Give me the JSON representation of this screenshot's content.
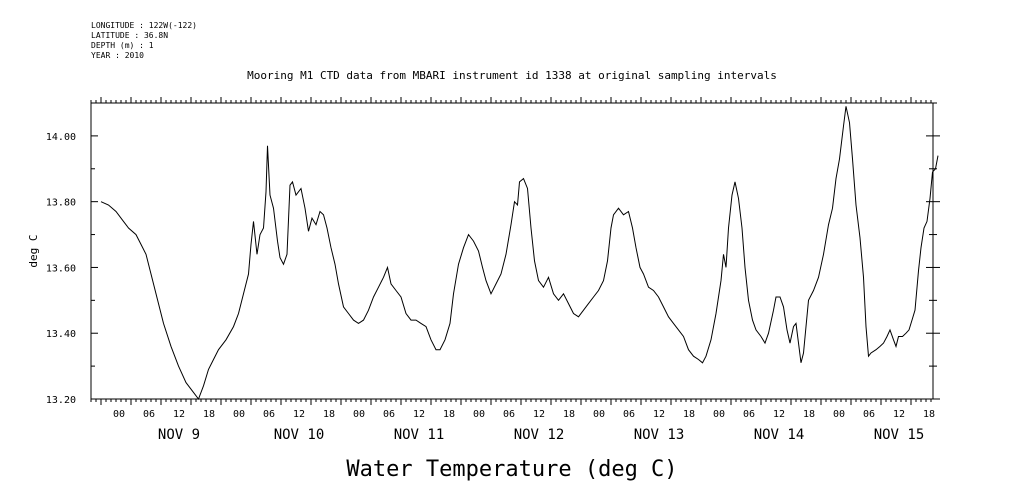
{
  "metadata": {
    "longitude": "LONGITUDE : 122W(-122)",
    "latitude": "LATITUDE : 36.8N",
    "depth": "DEPTH (m) : 1",
    "year": "YEAR : 2010"
  },
  "colors": {
    "line": "#000000",
    "background": "#ffffff"
  },
  "chart_data": {
    "type": "line",
    "title": "Mooring M1 CTD data from MBARI instrument id 1338 at original sampling intervals",
    "xlabel": "Water Temperature (deg C)",
    "ylabel": "deg C",
    "ylim": [
      13.2,
      14.1
    ],
    "yticks": [
      13.2,
      13.4,
      13.6,
      13.8,
      14.0
    ],
    "ytick_labels": [
      "13.20",
      "13.40",
      "13.60",
      "13.80",
      "14.00"
    ],
    "x_unit": "hours from NOV 8 18:00",
    "xlim": [
      0,
      168
    ],
    "hour_ticks": [
      "00",
      "06",
      "12",
      "18",
      "00",
      "06",
      "12",
      "18",
      "00",
      "06",
      "12",
      "18",
      "00",
      "06",
      "12",
      "18",
      "00",
      "06",
      "12",
      "18",
      "00",
      "06",
      "12",
      "18",
      "00",
      "06",
      "12",
      "18"
    ],
    "day_labels": [
      "NOV  9",
      "NOV 10",
      "NOV 11",
      "NOV 12",
      "NOV 13",
      "NOV 14",
      "NOV 15"
    ],
    "grid": false,
    "series": [
      {
        "values": [
          [
            0.0,
            13.8
          ],
          [
            1.5,
            13.79
          ],
          [
            3.0,
            13.77
          ],
          [
            4.5,
            13.74
          ],
          [
            5.5,
            13.72
          ],
          [
            7.0,
            13.7
          ],
          [
            8.0,
            13.67
          ],
          [
            9.0,
            13.64
          ],
          [
            10.0,
            13.58
          ],
          [
            11.0,
            13.52
          ],
          [
            12.5,
            13.43
          ],
          [
            14.0,
            13.36
          ],
          [
            15.5,
            13.3
          ],
          [
            17.0,
            13.25
          ],
          [
            18.5,
            13.22
          ],
          [
            19.5,
            13.2
          ],
          [
            20.5,
            13.24
          ],
          [
            21.5,
            13.29
          ],
          [
            22.5,
            13.32
          ],
          [
            23.5,
            13.35
          ],
          [
            25.0,
            13.38
          ],
          [
            26.5,
            13.42
          ],
          [
            27.5,
            13.46
          ],
          [
            28.5,
            13.52
          ],
          [
            29.5,
            13.58
          ],
          [
            30.0,
            13.67
          ],
          [
            30.5,
            13.74
          ],
          [
            31.2,
            13.64
          ],
          [
            31.8,
            13.7
          ],
          [
            32.5,
            13.72
          ],
          [
            33.0,
            13.83
          ],
          [
            33.3,
            13.97
          ],
          [
            33.8,
            13.82
          ],
          [
            34.5,
            13.78
          ],
          [
            35.3,
            13.68
          ],
          [
            35.8,
            13.63
          ],
          [
            36.5,
            13.61
          ],
          [
            37.2,
            13.64
          ],
          [
            37.8,
            13.85
          ],
          [
            38.3,
            13.86
          ],
          [
            39.0,
            13.82
          ],
          [
            40.0,
            13.84
          ],
          [
            40.8,
            13.78
          ],
          [
            41.5,
            13.71
          ],
          [
            42.2,
            13.75
          ],
          [
            43.0,
            13.73
          ],
          [
            43.8,
            13.77
          ],
          [
            44.5,
            13.76
          ],
          [
            45.2,
            13.72
          ],
          [
            46.0,
            13.66
          ],
          [
            46.8,
            13.61
          ],
          [
            47.5,
            13.55
          ],
          [
            48.5,
            13.48
          ],
          [
            49.5,
            13.46
          ],
          [
            50.5,
            13.44
          ],
          [
            51.5,
            13.43
          ],
          [
            52.5,
            13.44
          ],
          [
            53.5,
            13.47
          ],
          [
            54.5,
            13.51
          ],
          [
            55.5,
            13.54
          ],
          [
            56.5,
            13.57
          ],
          [
            57.3,
            13.6
          ],
          [
            58.0,
            13.55
          ],
          [
            59.0,
            13.53
          ],
          [
            60.0,
            13.51
          ],
          [
            61.0,
            13.46
          ],
          [
            62.0,
            13.44
          ],
          [
            63.0,
            13.44
          ],
          [
            64.0,
            13.43
          ],
          [
            65.0,
            13.42
          ],
          [
            66.0,
            13.38
          ],
          [
            67.0,
            13.35
          ],
          [
            67.8,
            13.35
          ],
          [
            68.8,
            13.38
          ],
          [
            69.8,
            13.43
          ],
          [
            70.5,
            13.52
          ],
          [
            71.5,
            13.61
          ],
          [
            72.5,
            13.66
          ],
          [
            73.5,
            13.7
          ],
          [
            74.5,
            13.68
          ],
          [
            75.5,
            13.65
          ],
          [
            76.3,
            13.6
          ],
          [
            77.0,
            13.56
          ],
          [
            78.0,
            13.52
          ],
          [
            79.0,
            13.55
          ],
          [
            80.0,
            13.58
          ],
          [
            81.0,
            13.64
          ],
          [
            82.0,
            13.73
          ],
          [
            82.7,
            13.8
          ],
          [
            83.3,
            13.79
          ],
          [
            83.7,
            13.86
          ],
          [
            84.5,
            13.87
          ],
          [
            85.3,
            13.84
          ],
          [
            86.0,
            13.72
          ],
          [
            86.7,
            13.62
          ],
          [
            87.5,
            13.56
          ],
          [
            88.5,
            13.54
          ],
          [
            89.5,
            13.57
          ],
          [
            90.5,
            13.52
          ],
          [
            91.5,
            13.5
          ],
          [
            92.5,
            13.52
          ],
          [
            93.5,
            13.49
          ],
          [
            94.5,
            13.46
          ],
          [
            95.5,
            13.45
          ],
          [
            96.5,
            13.47
          ],
          [
            97.5,
            13.49
          ],
          [
            98.5,
            13.51
          ],
          [
            99.5,
            13.53
          ],
          [
            100.5,
            13.56
          ],
          [
            101.3,
            13.62
          ],
          [
            102.0,
            13.72
          ],
          [
            102.5,
            13.76
          ],
          [
            103.5,
            13.78
          ],
          [
            104.5,
            13.76
          ],
          [
            105.5,
            13.77
          ],
          [
            106.3,
            13.72
          ],
          [
            107.0,
            13.66
          ],
          [
            107.8,
            13.6
          ],
          [
            108.5,
            13.58
          ],
          [
            109.5,
            13.54
          ],
          [
            110.5,
            13.53
          ],
          [
            111.5,
            13.51
          ],
          [
            112.5,
            13.48
          ],
          [
            113.5,
            13.45
          ],
          [
            114.5,
            13.43
          ],
          [
            115.5,
            13.41
          ],
          [
            116.5,
            13.39
          ],
          [
            117.5,
            13.35
          ],
          [
            118.5,
            13.33
          ],
          [
            119.5,
            13.32
          ],
          [
            120.3,
            13.31
          ],
          [
            121.0,
            13.33
          ],
          [
            122.0,
            13.38
          ],
          [
            123.0,
            13.46
          ],
          [
            124.0,
            13.56
          ],
          [
            124.5,
            13.64
          ],
          [
            125.0,
            13.6
          ],
          [
            125.5,
            13.72
          ],
          [
            126.2,
            13.82
          ],
          [
            126.8,
            13.86
          ],
          [
            127.5,
            13.81
          ],
          [
            128.2,
            13.72
          ],
          [
            128.8,
            13.6
          ],
          [
            129.5,
            13.5
          ],
          [
            130.3,
            13.44
          ],
          [
            131.0,
            13.41
          ],
          [
            132.0,
            13.39
          ],
          [
            132.8,
            13.37
          ],
          [
            133.5,
            13.4
          ],
          [
            134.5,
            13.47
          ],
          [
            135.0,
            13.51
          ],
          [
            135.8,
            13.51
          ],
          [
            136.5,
            13.48
          ],
          [
            137.2,
            13.41
          ],
          [
            137.8,
            13.37
          ],
          [
            138.5,
            13.42
          ],
          [
            139.0,
            13.43
          ],
          [
            139.5,
            13.37
          ],
          [
            140.0,
            13.31
          ],
          [
            140.5,
            13.34
          ],
          [
            141.0,
            13.42
          ],
          [
            141.5,
            13.5
          ],
          [
            142.5,
            13.53
          ],
          [
            143.5,
            13.57
          ],
          [
            144.5,
            13.64
          ],
          [
            145.5,
            13.73
          ],
          [
            146.3,
            13.78
          ],
          [
            147.0,
            13.87
          ],
          [
            147.7,
            13.93
          ],
          [
            148.5,
            14.03
          ],
          [
            149.0,
            14.09
          ],
          [
            149.7,
            14.04
          ],
          [
            150.3,
            13.93
          ],
          [
            151.0,
            13.79
          ],
          [
            151.8,
            13.69
          ],
          [
            152.5,
            13.57
          ],
          [
            153.0,
            13.42
          ],
          [
            153.5,
            13.33
          ],
          [
            154.0,
            13.34
          ],
          [
            155.0,
            13.35
          ],
          [
            155.8,
            13.36
          ],
          [
            156.5,
            13.37
          ],
          [
            157.2,
            13.39
          ],
          [
            157.8,
            13.41
          ],
          [
            158.5,
            13.38
          ],
          [
            159.0,
            13.36
          ],
          [
            159.5,
            13.39
          ],
          [
            160.3,
            13.39
          ],
          [
            161.0,
            13.4
          ],
          [
            161.6,
            13.41
          ],
          [
            162.2,
            13.44
          ],
          [
            162.8,
            13.47
          ],
          [
            163.5,
            13.59
          ],
          [
            164.0,
            13.66
          ],
          [
            164.6,
            13.72
          ],
          [
            165.2,
            13.74
          ],
          [
            165.8,
            13.81
          ],
          [
            166.3,
            13.89
          ],
          [
            166.9,
            13.9
          ],
          [
            167.4,
            13.94
          ]
        ]
      }
    ]
  }
}
